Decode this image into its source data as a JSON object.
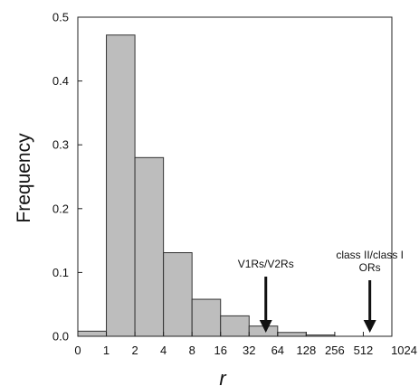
{
  "chart_data": {
    "type": "bar",
    "title": "",
    "xlabel": "r",
    "ylabel": "Frequency",
    "ylim": [
      0,
      0.5
    ],
    "y_ticks": [
      "0.0",
      "0.1",
      "0.2",
      "0.3",
      "0.4",
      "0.5"
    ],
    "y_tick_values": [
      0,
      0.1,
      0.2,
      0.3,
      0.4,
      0.5
    ],
    "x_tick_labels": [
      "0",
      "1",
      "2",
      "4",
      "8",
      "16",
      "32",
      "64",
      "128",
      "256",
      "512",
      "1024"
    ],
    "bins": [
      {
        "from": "0",
        "to": "1",
        "value": 0.008
      },
      {
        "from": "1",
        "to": "2",
        "value": 0.472
      },
      {
        "from": "2",
        "to": "4",
        "value": 0.28
      },
      {
        "from": "4",
        "to": "8",
        "value": 0.131
      },
      {
        "from": "8",
        "to": "16",
        "value": 0.058
      },
      {
        "from": "16",
        "to": "32",
        "value": 0.032
      },
      {
        "from": "32",
        "to": "64",
        "value": 0.016
      },
      {
        "from": "64",
        "to": "128",
        "value": 0.006
      },
      {
        "from": "128",
        "to": "256",
        "value": 0.002
      },
      {
        "from": "256",
        "to": "512",
        "value": 0.0
      },
      {
        "from": "512",
        "to": "1024",
        "value": 0.0
      }
    ],
    "annotations": [
      {
        "lines": [
          "V1Rs/V2Rs"
        ],
        "x": 48
      },
      {
        "lines": [
          "class II/class I",
          "ORs"
        ],
        "x": 600
      }
    ],
    "bar_color": "#bdbdbd",
    "bar_edge_color": "#333333",
    "grid": false
  }
}
